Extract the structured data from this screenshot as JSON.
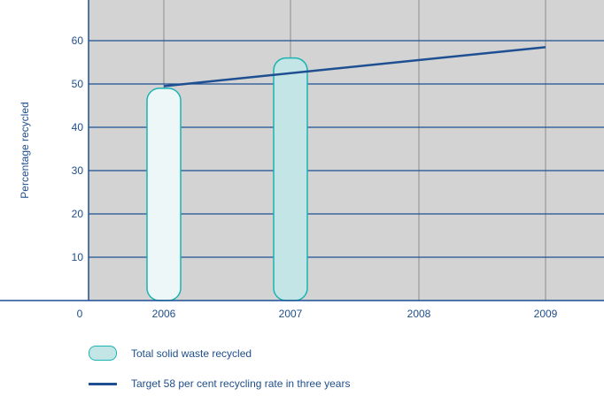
{
  "chart_data": {
    "type": "bar",
    "categories": [
      "2006",
      "2007",
      "2008",
      "2009"
    ],
    "x_origin_label": "0",
    "ylabel": "Percentage recycled",
    "ylim": [
      0,
      70
    ],
    "yticks": [
      10,
      20,
      30,
      40,
      50,
      60
    ],
    "grid": true,
    "series": [
      {
        "name": "Total solid waste recycled",
        "type": "bar",
        "values": [
          49,
          56,
          null,
          null
        ],
        "colors": [
          "#eef7f7",
          "#c4e5e5"
        ]
      },
      {
        "name": "Target 58 per cent recycling rate in three years",
        "type": "line",
        "x": [
          "2006",
          "2009"
        ],
        "values": [
          49.5,
          58.5
        ],
        "color": "#1d4f92"
      }
    ],
    "colors": {
      "plot_background": "#d3d3d3",
      "gridline": "#1d4f92",
      "bar_border": "#1ab3b3",
      "text": "#1f4e8c"
    }
  }
}
